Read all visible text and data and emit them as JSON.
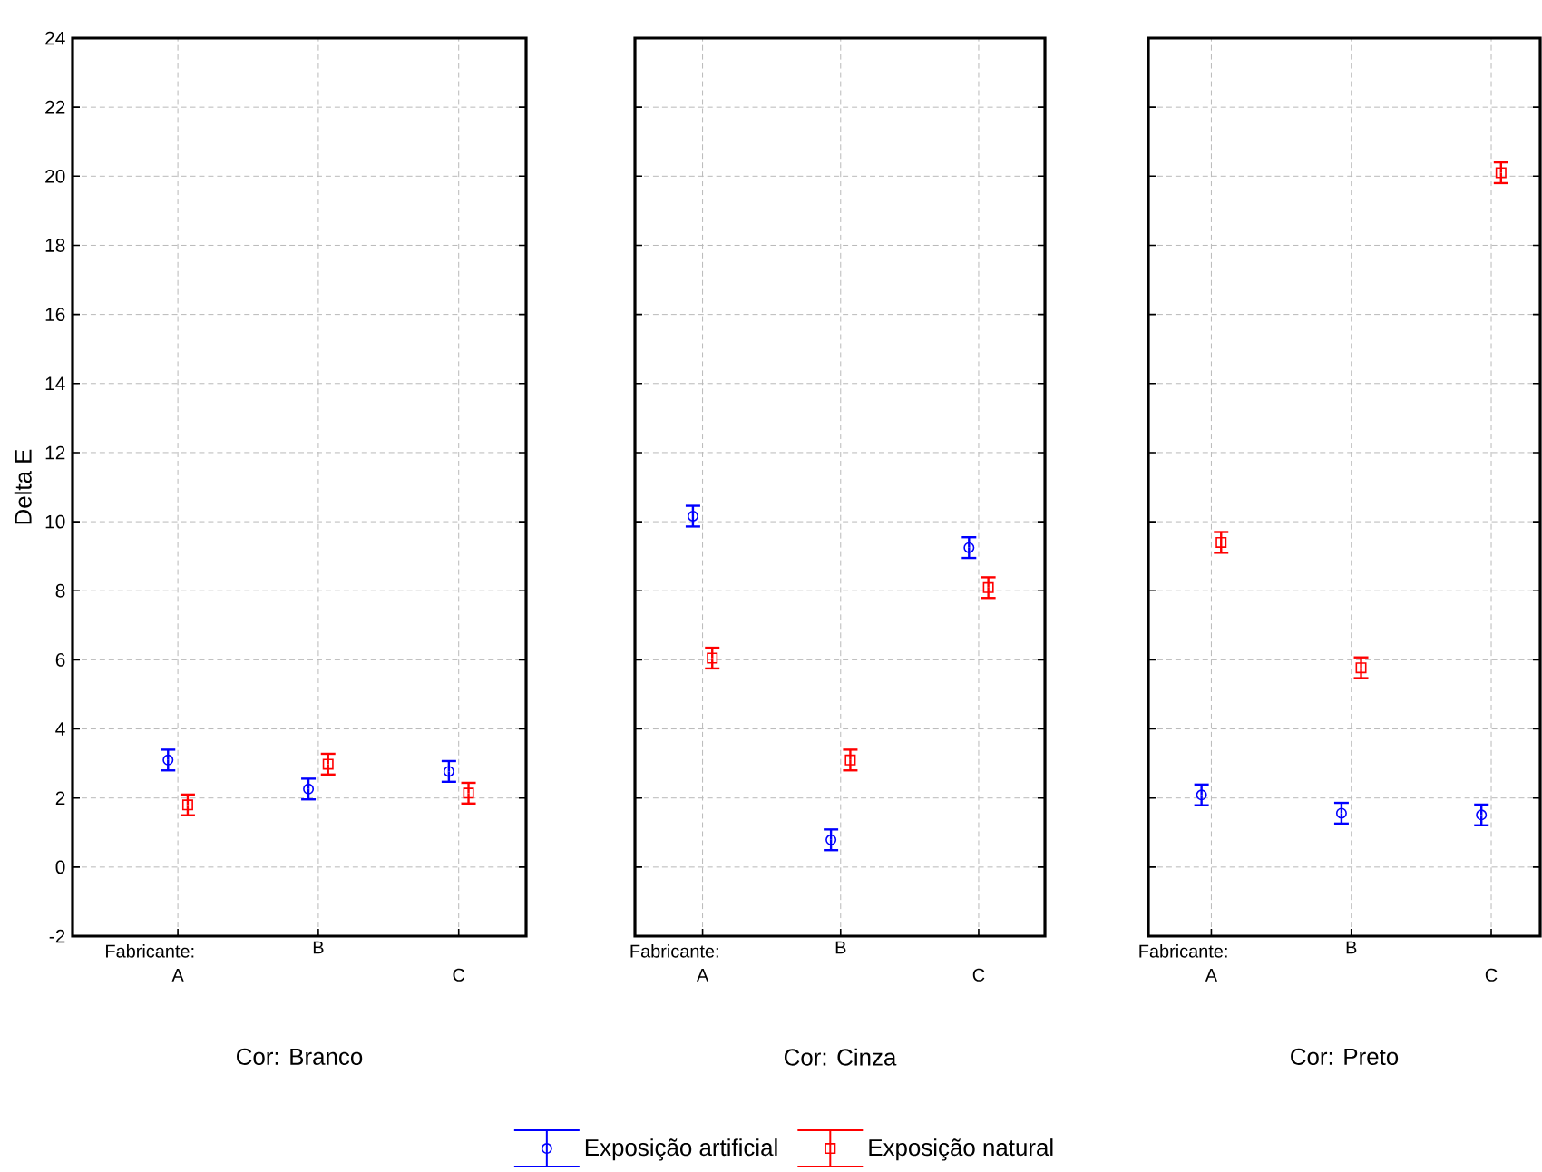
{
  "chart_data": [
    {
      "type": "scatter",
      "xlabel": "Cor: Branco",
      "ylabel": "Delta E",
      "annotations": [
        "Fabricante:"
      ],
      "categories": [
        "A",
        "B",
        "C"
      ],
      "ylim": [
        -2,
        24
      ],
      "yticks": [
        -2,
        0,
        2,
        4,
        6,
        8,
        10,
        12,
        14,
        16,
        18,
        20,
        22,
        24
      ],
      "grid": true,
      "legend": "bottom",
      "series": [
        {
          "name": "Exposição artificial",
          "color": "#0000ff",
          "marker": "circle",
          "values": [
            3.1,
            2.26,
            2.77
          ],
          "errors": [
            0.3,
            0.3,
            0.3
          ]
        },
        {
          "name": "Exposição natural",
          "color": "#ff0000",
          "marker": "square",
          "values": [
            1.8,
            2.98,
            2.14
          ],
          "errors": [
            0.3,
            0.3,
            0.3
          ]
        }
      ]
    },
    {
      "type": "scatter",
      "xlabel": "Cor: Cinza",
      "annotations": [
        "Fabricante:"
      ],
      "categories": [
        "A",
        "B",
        "C"
      ],
      "ylim": [
        -2,
        24
      ],
      "yticks": [
        -2,
        0,
        2,
        4,
        6,
        8,
        10,
        12,
        14,
        16,
        18,
        20,
        22,
        24
      ],
      "grid": true,
      "tick_labels": "x",
      "series": [
        {
          "color": "#0000ff",
          "marker": "circle",
          "values": [
            10.16,
            0.79,
            9.25
          ],
          "errors": [
            0.3,
            0.3,
            0.3
          ]
        },
        {
          "color": "#ff0000",
          "marker": "square",
          "values": [
            6.05,
            3.1,
            8.09
          ],
          "errors": [
            0.3,
            0.3,
            0.3
          ]
        }
      ]
    },
    {
      "type": "scatter",
      "xlabel": "Cor: Preto",
      "annotations": [
        "Fabricante:"
      ],
      "categories": [
        "A",
        "B",
        "C"
      ],
      "ylim": [
        -2,
        24
      ],
      "yticks": [
        -2,
        0,
        2,
        4,
        6,
        8,
        10,
        12,
        14,
        16,
        18,
        20,
        22,
        24
      ],
      "grid": true,
      "tick_labels": "x",
      "series": [
        {
          "color": "#0000ff",
          "marker": "circle",
          "values": [
            2.09,
            1.56,
            1.51
          ],
          "errors": [
            0.3,
            0.3,
            0.3
          ]
        },
        {
          "color": "#ff0000",
          "marker": "square",
          "values": [
            9.4,
            5.77,
            20.1
          ],
          "errors": [
            0.3,
            0.3,
            0.3
          ]
        }
      ]
    }
  ]
}
